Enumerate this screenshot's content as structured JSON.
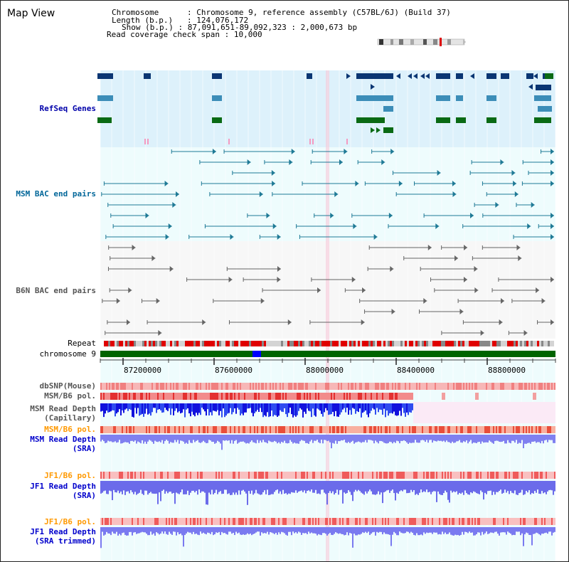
{
  "title": "Map View",
  "header": {
    "chromosome_key": "Chromosome",
    "chromosome_val": "Chromosome 9, reference assembly (C57BL/6J) (Build 37)",
    "length_key": "Length (b.p.)",
    "length_val": "124,076,172",
    "show_key": "Show (b.p.)",
    "show_val": "87,091,651-89,092,323 : 2,000,673 bp",
    "coverage_key": "Read coverage check span",
    "coverage_val": "10,000"
  },
  "tracks": {
    "refseq": {
      "label": "RefSeq Genes",
      "color": "#0000aa"
    },
    "msm_bac": {
      "label": "MSM BAC end pairs",
      "color": "#006699"
    },
    "b6n_bac": {
      "label": "B6N BAC end pairs",
      "color": "#555555"
    },
    "repeat": {
      "label": "Repeat"
    },
    "chromosome": {
      "label": "chromosome 9"
    },
    "dbsnp": {
      "label": "dbSNP(Mouse)"
    },
    "msm_b6_pol": {
      "label": "MSM/B6 pol."
    },
    "msm_read_depth_cap": {
      "label1": "MSM Read Depth",
      "label2": "(Capillary)"
    },
    "msm_b6_pol_sra": {
      "label": "MSM/B6 pol.",
      "color": "#ff9900"
    },
    "msm_read_depth_sra": {
      "label1": "MSM Read Depth",
      "label2": "(SRA)",
      "color": "#0000cc"
    },
    "jf1_b6_pol": {
      "label": "JF1/B6 pol.",
      "color": "#ff9900"
    },
    "jf1_read_depth_sra": {
      "label1": "JF1 Read Depth",
      "label2": "(SRA)",
      "color": "#0000cc"
    },
    "jf1_b6_pol_trim": {
      "label": "JF1/B6 pol.",
      "color": "#ff9900"
    },
    "jf1_read_depth_trim": {
      "label1": "JF1 Read Depth",
      "label2": "(SRA trimmed)",
      "color": "#0000cc"
    }
  },
  "axis": {
    "ticks": [
      "87200000",
      "87600000",
      "88000000",
      "88400000",
      "88800000"
    ]
  },
  "colors": {
    "refseq_bg": "#ddf1fb",
    "msm_bac_bg": "#eefcfd",
    "b6n_bg": "#f6f6f6",
    "gene_dark": "#0b3673",
    "gene_mid": "#3c8db8",
    "gene_green": "#0a6a14",
    "chromosome_bar": "#006400",
    "chromosome_highlight": "#0000ff"
  }
}
